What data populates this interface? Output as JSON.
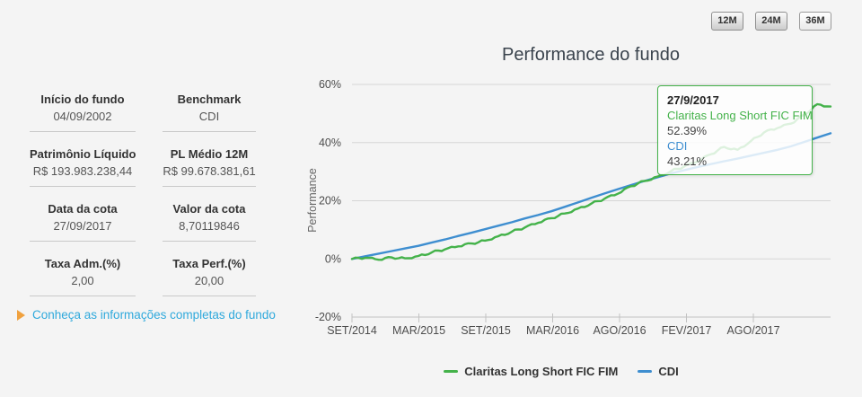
{
  "colors": {
    "background": "#f4f4f4",
    "green": "#44b24a",
    "blue": "#3e8ed0",
    "link": "#2fa9dc",
    "arrow": "#f0a13e",
    "grid": "#d6d6d6",
    "axis": "#c2c2c2"
  },
  "period_buttons": {
    "items": [
      {
        "label": "12M",
        "active": false
      },
      {
        "label": "24M",
        "active": false
      },
      {
        "label": "36M",
        "active": true
      }
    ]
  },
  "fund_info": {
    "cells": [
      {
        "label": "Início do fundo",
        "value": "04/09/2002"
      },
      {
        "label": "Benchmark",
        "value": "CDI"
      },
      {
        "label": "Patrimônio Líquido",
        "value": "R$ 193.983.238,44"
      },
      {
        "label": "PL Médio 12M",
        "value": "R$ 99.678.381,61"
      },
      {
        "label": "Data da cota",
        "value": "27/09/2017"
      },
      {
        "label": "Valor da cota",
        "value": "8,70119846"
      },
      {
        "label": "Taxa Adm.(%)",
        "value": "2,00"
      },
      {
        "label": "Taxa Perf.(%)",
        "value": "20,00"
      }
    ]
  },
  "details_link": {
    "text": "Conheça as informações completas do fundo"
  },
  "chart_data": {
    "type": "line",
    "title": "Performance do fundo",
    "ylabel": "Performance",
    "x_ticks": [
      "SET/2014",
      "MAR/2015",
      "SET/2015",
      "MAR/2016",
      "AGO/2016",
      "FEV/2017",
      "AGO/2017"
    ],
    "y_ticks": [
      "60%",
      "40%",
      "20%",
      "0%",
      "-20%"
    ],
    "y_tick_values": [
      60,
      40,
      20,
      0,
      -20
    ],
    "ylim": [
      -20,
      60
    ],
    "grid": true,
    "legend_position": "bottom",
    "x_range_months": "SET/2014 to SET/2017, monthly cumulative return (%)",
    "series": [
      {
        "name": "Claritas Long Short FIC FIM",
        "color": "#44b24a",
        "values": [
          0,
          0.4,
          -0.3,
          0.5,
          0.2,
          1.0,
          2.2,
          3.3,
          4.3,
          5.3,
          6.3,
          7.8,
          9.3,
          10.8,
          12.4,
          14.0,
          15.6,
          17.3,
          19.0,
          20.7,
          22.4,
          25.0,
          26.8,
          28.3,
          30.2,
          31.8,
          33.5,
          36.0,
          38.5,
          37.5,
          40.5,
          43.5,
          45.0,
          46.5,
          49.5,
          53.2,
          52.39
        ]
      },
      {
        "name": "CDI",
        "color": "#3e8ed0",
        "values": [
          0,
          0.9,
          1.8,
          2.7,
          3.6,
          4.5,
          5.6,
          6.7,
          7.9,
          9.0,
          10.2,
          11.4,
          12.6,
          13.9,
          15.1,
          16.4,
          17.9,
          19.4,
          21.0,
          22.5,
          24.0,
          25.4,
          26.8,
          28.1,
          29.4,
          30.5,
          31.6,
          32.6,
          33.6,
          34.5,
          35.5,
          36.5,
          37.5,
          38.7,
          40.2,
          41.7,
          43.21
        ]
      }
    ],
    "tooltip": {
      "date": "27/9/2017",
      "series1_name": "Claritas Long Short FIC FIM",
      "series1_value": "52.39%",
      "series2_name": "CDI",
      "series2_value": "43.21%"
    }
  }
}
